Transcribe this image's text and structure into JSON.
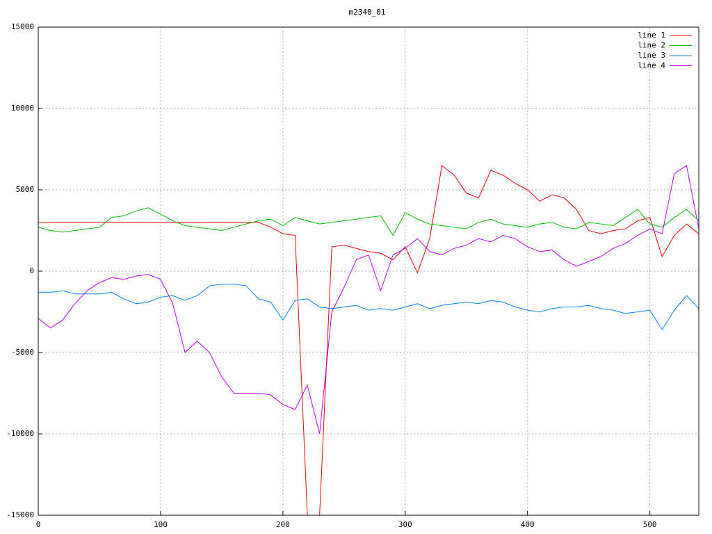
{
  "chart_data": {
    "type": "line",
    "title": "m2340_01",
    "x": [
      0,
      10,
      20,
      30,
      40,
      50,
      60,
      70,
      80,
      90,
      100,
      110,
      120,
      130,
      140,
      150,
      160,
      170,
      180,
      190,
      200,
      210,
      220,
      230,
      240,
      250,
      260,
      270,
      280,
      290,
      300,
      310,
      320,
      330,
      340,
      350,
      360,
      370,
      380,
      390,
      400,
      410,
      420,
      430,
      440,
      450,
      460,
      470,
      480,
      490,
      500,
      510,
      520,
      530,
      540
    ],
    "series": [
      {
        "name": "line 1",
        "color": "#ff0000",
        "values": [
          3000,
          3000,
          3000,
          3000,
          3000,
          3000,
          3000,
          3000,
          3000,
          3000,
          3000,
          3000,
          3000,
          3000,
          3000,
          3000,
          3000,
          3000,
          3000,
          2700,
          2300,
          2200,
          -15000,
          -15000,
          1500,
          1600,
          1400,
          1200,
          1100,
          700,
          1500,
          -100,
          2000,
          6500,
          5900,
          4800,
          4500,
          6200,
          5900,
          5400,
          5000,
          4300,
          4700,
          4500,
          3800,
          2500,
          2300,
          2500,
          2600,
          3100,
          3300,
          900,
          2200,
          2900,
          2300
        ]
      },
      {
        "name": "line 2",
        "color": "#00c000",
        "values": [
          2700,
          2500,
          2400,
          2500,
          2600,
          2700,
          3300,
          3400,
          3700,
          3900,
          3500,
          3100,
          2800,
          2700,
          2600,
          2500,
          2700,
          2900,
          3100,
          3200,
          2800,
          3300,
          3100,
          2900,
          3000,
          3100,
          3200,
          3300,
          3400,
          2200,
          3600,
          3200,
          2900,
          2800,
          2700,
          2600,
          3000,
          3200,
          2900,
          2800,
          2700,
          2900,
          3000,
          2700,
          2600,
          3000,
          2900,
          2800,
          3300,
          3800,
          2900,
          2700,
          3300,
          3800,
          3100
        ]
      },
      {
        "name": "line 3",
        "color": "#0080ff",
        "values": [
          -1300,
          -1300,
          -1200,
          -1400,
          -1400,
          -1400,
          -1300,
          -1700,
          -2000,
          -1900,
          -1600,
          -1500,
          -1800,
          -1500,
          -900,
          -800,
          -800,
          -900,
          -1700,
          -1900,
          -3000,
          -1800,
          -1700,
          -2200,
          -2300,
          -2200,
          -2100,
          -2400,
          -2300,
          -2400,
          -2200,
          -2000,
          -2300,
          -2100,
          -2000,
          -1900,
          -2000,
          -1800,
          -1900,
          -2200,
          -2400,
          -2500,
          -2300,
          -2200,
          -2200,
          -2100,
          -2300,
          -2400,
          -2600,
          -2500,
          -2400,
          -3600,
          -2400,
          -1500,
          -2300
        ]
      },
      {
        "name": "line 4",
        "color": "#c000ff",
        "values": [
          -2900,
          -3500,
          -3000,
          -2000,
          -1200,
          -700,
          -400,
          -500,
          -300,
          -200,
          -500,
          -2000,
          -5000,
          -4300,
          -5000,
          -6500,
          -7500,
          -7500,
          -7500,
          -7600,
          -8200,
          -8500,
          -7000,
          -10000,
          -2500,
          -1000,
          700,
          1000,
          -1200,
          1000,
          1400,
          2000,
          1200,
          1000,
          1400,
          1600,
          2000,
          1800,
          2200,
          2000,
          1500,
          1200,
          1300,
          700,
          300,
          600,
          900,
          1400,
          1700,
          2200,
          2600,
          2300,
          6000,
          6500,
          2600
        ]
      }
    ],
    "xlim": [
      0,
      540
    ],
    "xticks": [
      0,
      100,
      200,
      300,
      400,
      500
    ],
    "ylim": [
      -15000,
      15000
    ],
    "yticks": [
      -15000,
      -10000,
      -5000,
      0,
      5000,
      10000,
      15000
    ],
    "grid": true,
    "legend": "top-right"
  }
}
